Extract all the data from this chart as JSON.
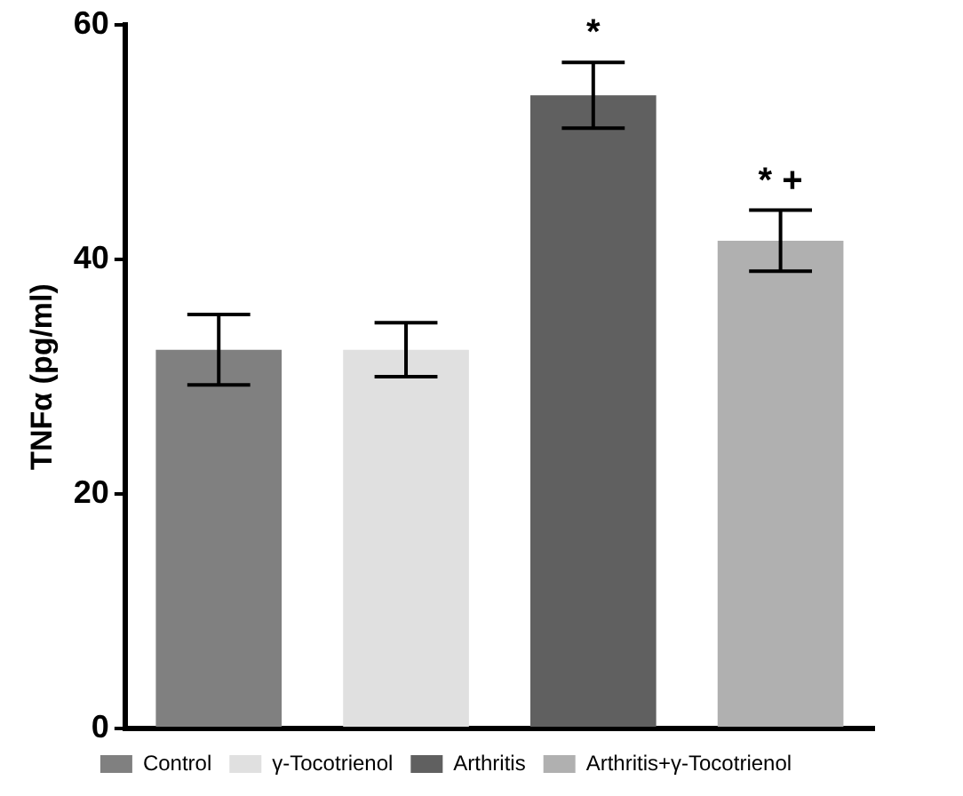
{
  "chart_data": {
    "type": "bar",
    "ylabel": "TNFα (pg/ml)",
    "categories": [
      null,
      null,
      null,
      null
    ],
    "series": [
      {
        "name": "Control",
        "color": "#808080",
        "values": [
          32.3,
          null,
          null,
          null
        ],
        "errors": [
          3.0,
          null,
          null,
          null
        ]
      },
      {
        "name": "γ-Tocotrienol",
        "color": "#e0e0e0",
        "values": [
          null,
          32.3,
          null,
          null
        ],
        "errors": [
          null,
          2.3,
          null,
          null
        ]
      },
      {
        "name": "Arthritis",
        "color": "#606060",
        "values": [
          null,
          null,
          54.0,
          null
        ],
        "errors": [
          null,
          null,
          2.8,
          null
        ]
      },
      {
        "name": "Arthritis+γ-Tocotrienol",
        "color": "#b0b0b0",
        "values": [
          null,
          null,
          null,
          41.6
        ],
        "errors": [
          null,
          null,
          null,
          2.6
        ]
      }
    ],
    "ylim": [
      0,
      60
    ],
    "yticks": [
      0,
      20,
      40,
      60
    ],
    "grid": false,
    "legend": "bottom",
    "tick_labels": "y",
    "annotations": [
      {
        "text": "*",
        "y": 56.8
      },
      {
        "text": "* +",
        "y": 44.2
      }
    ]
  }
}
